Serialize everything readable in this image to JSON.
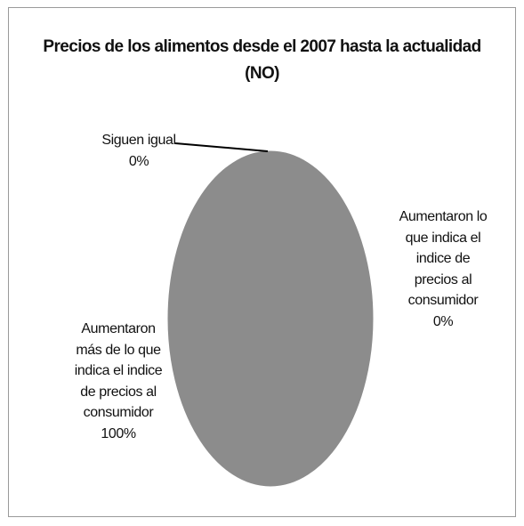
{
  "chart_data": {
    "type": "pie",
    "title_line1": "Precios de los alimentos desde el 2007 hasta la actualidad",
    "title_line2": "(NO)",
    "slices": [
      {
        "label_lines": [
          "Siguen igual",
          "0%"
        ],
        "value": 0
      },
      {
        "label_lines": [
          "Aumentaron lo",
          "que indica el",
          "indice de",
          "precios al",
          "consumidor",
          "0%"
        ],
        "value": 0
      },
      {
        "label_lines": [
          "Aumentaron",
          "más de lo que",
          "indica el indice",
          "de precios al",
          "consumidor",
          "100%"
        ],
        "value": 100
      }
    ],
    "slice_color": "#8c8c8c",
    "slice_border": "#ffffff",
    "leader_line_color": "#000000"
  }
}
